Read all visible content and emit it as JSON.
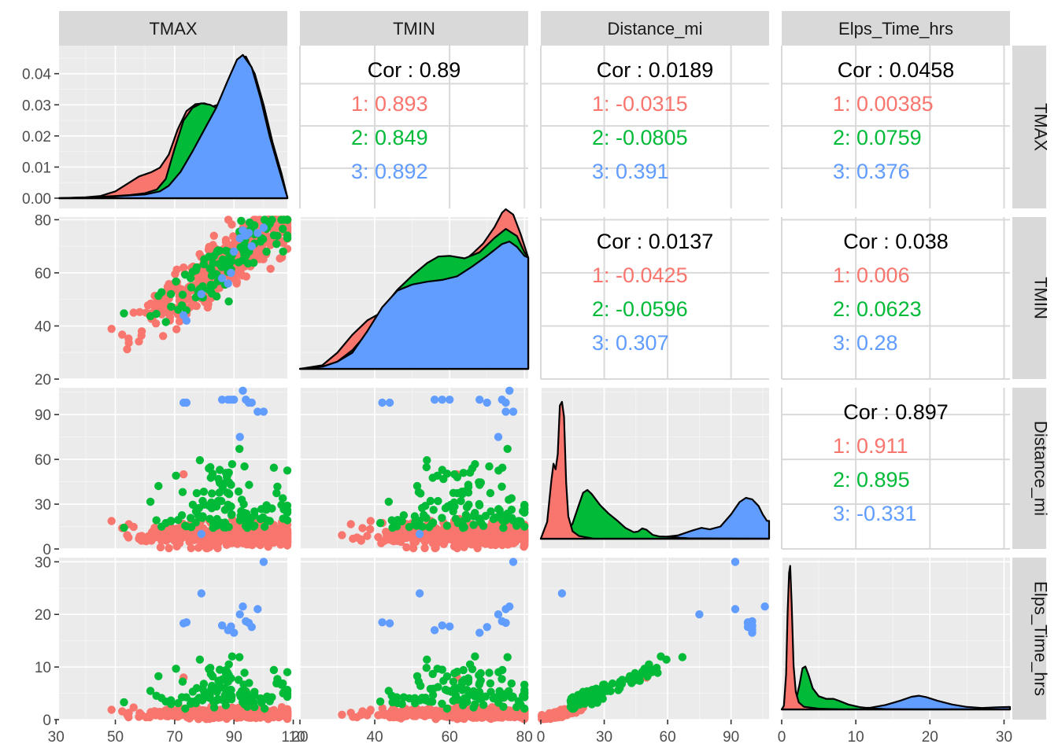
{
  "chart_data": {
    "type": "scatter-matrix",
    "variables": [
      "TMAX",
      "TMIN",
      "Distance_mi",
      "Elps_Time_hrs"
    ],
    "groups": [
      {
        "name": "1",
        "color": "#F8766D"
      },
      {
        "name": "2",
        "color": "#00BA38"
      },
      {
        "name": "3",
        "color": "#619CFF"
      }
    ],
    "axes": {
      "TMAX": {
        "range": [
          31,
          108
        ],
        "ticks": [
          30,
          50,
          70,
          90,
          110
        ]
      },
      "TMIN": {
        "range": [
          20,
          81
        ],
        "ticks": [
          20,
          40,
          60,
          80
        ]
      },
      "Distance_mi": {
        "range": [
          0,
          108
        ],
        "ticks": [
          0,
          30,
          60,
          90
        ]
      },
      "Elps_Time_hrs": {
        "range": [
          0,
          30.8
        ],
        "ticks": [
          0,
          10,
          20,
          30
        ]
      }
    },
    "density_yaxis": {
      "range": [
        0,
        0.0475
      ],
      "ticks": [
        "0.00",
        "0.01",
        "0.02",
        "0.03",
        "0.04"
      ]
    },
    "grid": true,
    "correlations": [
      {
        "row": "TMAX",
        "col": "TMIN",
        "overall": "Cor : 0.89",
        "groups": [
          "1: 0.893",
          "2: 0.849",
          "3: 0.892"
        ]
      },
      {
        "row": "TMAX",
        "col": "Distance_mi",
        "overall": "Cor : 0.0189",
        "groups": [
          "1: -0.0315",
          "2: -0.0805",
          "3: 0.391"
        ]
      },
      {
        "row": "TMAX",
        "col": "Elps_Time_hrs",
        "overall": "Cor : 0.0458",
        "groups": [
          "1: 0.00385",
          "2: 0.0759",
          "3: 0.376"
        ]
      },
      {
        "row": "TMIN",
        "col": "Distance_mi",
        "overall": "Cor : 0.0137",
        "groups": [
          "1: -0.0425",
          "2: -0.0596",
          "3: 0.307"
        ]
      },
      {
        "row": "TMIN",
        "col": "Elps_Time_hrs",
        "overall": "Cor : 0.038",
        "groups": [
          "1: 0.006",
          "2: 0.0623",
          "3: 0.28"
        ]
      },
      {
        "row": "Distance_mi",
        "col": "Elps_Time_hrs",
        "overall": "Cor : 0.897",
        "groups": [
          "1: 0.911",
          "2: 0.895",
          "3: -0.331"
        ]
      }
    ],
    "densities": {
      "TMAX": {
        "scale": [
          0,
          0.0475
        ],
        "groups": {
          "3": [
            [
              31,
              0
            ],
            [
              40,
              0.0002
            ],
            [
              50,
              0.0006
            ],
            [
              55,
              0.0009
            ],
            [
              60,
              0.0012
            ],
            [
              65,
              0.0022
            ],
            [
              68,
              0.004
            ],
            [
              72,
              0.0085
            ],
            [
              76,
              0.015
            ],
            [
              80,
              0.022
            ],
            [
              84,
              0.029
            ],
            [
              88,
              0.038
            ],
            [
              91,
              0.0445
            ],
            [
              93,
              0.046
            ],
            [
              96,
              0.042
            ],
            [
              99,
              0.032
            ],
            [
              102,
              0.02
            ],
            [
              105,
              0.01
            ],
            [
              108,
              0.0003
            ]
          ],
          "2": [
            [
              31,
              0
            ],
            [
              40,
              0.0002
            ],
            [
              50,
              0.0007
            ],
            [
              55,
              0.001
            ],
            [
              60,
              0.0016
            ],
            [
              64,
              0.0028
            ],
            [
              67,
              0.0062
            ],
            [
              70,
              0.016
            ],
            [
              73,
              0.025
            ],
            [
              76,
              0.029
            ],
            [
              79,
              0.0305
            ],
            [
              82,
              0.03
            ],
            [
              85,
              0.0285
            ],
            [
              88,
              0.0345
            ],
            [
              91,
              0.043
            ],
            [
              93,
              0.046
            ],
            [
              96,
              0.042
            ],
            [
              99,
              0.032
            ],
            [
              102,
              0.02
            ],
            [
              105,
              0.01
            ],
            [
              108,
              0.0003
            ]
          ],
          "1": [
            [
              31,
              0
            ],
            [
              40,
              0.0003
            ],
            [
              45,
              0.0007
            ],
            [
              50,
              0.0022
            ],
            [
              55,
              0.0052
            ],
            [
              58,
              0.007
            ],
            [
              62,
              0.0083
            ],
            [
              65,
              0.0098
            ],
            [
              68,
              0.014
            ],
            [
              71,
              0.022
            ],
            [
              74,
              0.028
            ],
            [
              77,
              0.0302
            ],
            [
              80,
              0.0305
            ],
            [
              83,
              0.0295
            ],
            [
              86,
              0.0305
            ],
            [
              89,
              0.038
            ],
            [
              92,
              0.045
            ],
            [
              94,
              0.0455
            ],
            [
              97,
              0.04
            ],
            [
              100,
              0.03
            ],
            [
              103,
              0.018
            ],
            [
              106,
              0.008
            ],
            [
              108,
              0.0003
            ]
          ]
        }
      },
      "TMIN": {
        "scale": [
          0,
          0.041
        ],
        "groups": {
          "3": [
            [
              20,
              0
            ],
            [
              26,
              0.0006
            ],
            [
              30,
              0.002
            ],
            [
              34,
              0.0045
            ],
            [
              38,
              0.0105
            ],
            [
              42,
              0.0172
            ],
            [
              46,
              0.0218
            ],
            [
              50,
              0.0235
            ],
            [
              54,
              0.0243
            ],
            [
              58,
              0.0248
            ],
            [
              62,
              0.0258
            ],
            [
              66,
              0.0285
            ],
            [
              70,
              0.0315
            ],
            [
              74,
              0.0348
            ],
            [
              76,
              0.0355
            ],
            [
              78,
              0.034
            ],
            [
              80,
              0.0315
            ],
            [
              81,
              0.031
            ]
          ],
          "2": [
            [
              20,
              0
            ],
            [
              26,
              0.0006
            ],
            [
              30,
              0.002
            ],
            [
              34,
              0.0052
            ],
            [
              38,
              0.01
            ],
            [
              42,
              0.0168
            ],
            [
              46,
              0.022
            ],
            [
              50,
              0.026
            ],
            [
              54,
              0.0295
            ],
            [
              57,
              0.0313
            ],
            [
              60,
              0.0315
            ],
            [
              64,
              0.0308
            ],
            [
              68,
              0.0325
            ],
            [
              72,
              0.0365
            ],
            [
              75,
              0.039
            ],
            [
              78,
              0.037
            ],
            [
              80,
              0.0325
            ],
            [
              81,
              0.031
            ]
          ],
          "1": [
            [
              20,
              0
            ],
            [
              26,
              0.001
            ],
            [
              30,
              0.0045
            ],
            [
              34,
              0.0095
            ],
            [
              38,
              0.0135
            ],
            [
              42,
              0.0158
            ],
            [
              46,
              0.017
            ],
            [
              50,
              0.019
            ],
            [
              54,
              0.022
            ],
            [
              58,
              0.0255
            ],
            [
              62,
              0.0285
            ],
            [
              66,
              0.032
            ],
            [
              69,
              0.035
            ],
            [
              72,
              0.0395
            ],
            [
              74,
              0.0435
            ],
            [
              75,
              0.0445
            ],
            [
              77,
              0.043
            ],
            [
              79,
              0.0375
            ],
            [
              81,
              0.031
            ]
          ]
        }
      },
      "Distance_mi": {
        "scale": [
          0,
          0.078
        ],
        "groups": {
          "1": [
            [
              0,
              0
            ],
            [
              3,
              0.009
            ],
            [
              5,
              0.031
            ],
            [
              6,
              0.04
            ],
            [
              7,
              0.037
            ],
            [
              8,
              0.045
            ],
            [
              9,
              0.071
            ],
            [
              10,
              0.073
            ],
            [
              11,
              0.065
            ],
            [
              12,
              0.03
            ],
            [
              13,
              0.012
            ],
            [
              15,
              0.004
            ],
            [
              18,
              0.0015
            ],
            [
              25,
              0
            ],
            [
              60,
              0
            ],
            [
              108,
              0
            ]
          ],
          "2": [
            [
              0,
              0
            ],
            [
              5,
              0.0006
            ],
            [
              12,
              0.003
            ],
            [
              15,
              0.008
            ],
            [
              18,
              0.018
            ],
            [
              20,
              0.0245
            ],
            [
              22,
              0.026
            ],
            [
              24,
              0.024
            ],
            [
              28,
              0.018
            ],
            [
              32,
              0.0135
            ],
            [
              36,
              0.0098
            ],
            [
              40,
              0.0058
            ],
            [
              44,
              0.0035
            ],
            [
              46,
              0.0038
            ],
            [
              48,
              0.0055
            ],
            [
              50,
              0.0048
            ],
            [
              53,
              0.002
            ],
            [
              56,
              0.0012
            ],
            [
              62,
              0.001
            ],
            [
              66,
              0.0005
            ],
            [
              70,
              0.0002
            ],
            [
              108,
              0
            ]
          ],
          "3": [
            [
              0,
              0
            ],
            [
              3,
              0.0008
            ],
            [
              6,
              0.0022
            ],
            [
              9,
              0.0035
            ],
            [
              11,
              0.0033
            ],
            [
              14,
              0.0018
            ],
            [
              18,
              0.0008
            ],
            [
              25,
              0.0002
            ],
            [
              40,
              0.0002
            ],
            [
              55,
              0.0005
            ],
            [
              65,
              0.0018
            ],
            [
              72,
              0.0045
            ],
            [
              76,
              0.0058
            ],
            [
              80,
              0.005
            ],
            [
              85,
              0.0065
            ],
            [
              90,
              0.013
            ],
            [
              94,
              0.0195
            ],
            [
              97,
              0.0218
            ],
            [
              100,
              0.021
            ],
            [
              103,
              0.0175
            ],
            [
              105,
              0.013
            ],
            [
              107,
              0.0095
            ],
            [
              108,
              0.0095
            ]
          ]
        }
      },
      "Elps_Time_hrs": {
        "scale": [
          0,
          0.84
        ],
        "groups": {
          "1": [
            [
              0,
              0
            ],
            [
              0.3,
              0.02
            ],
            [
              0.6,
              0.2
            ],
            [
              0.8,
              0.55
            ],
            [
              1.0,
              0.78
            ],
            [
              1.15,
              0.82
            ],
            [
              1.35,
              0.6
            ],
            [
              1.6,
              0.25
            ],
            [
              1.9,
              0.1
            ],
            [
              2.3,
              0.04
            ],
            [
              3,
              0.015
            ],
            [
              5,
              0.004
            ],
            [
              8,
              0
            ],
            [
              30.8,
              0
            ]
          ],
          "2": [
            [
              0,
              0
            ],
            [
              1,
              0.004
            ],
            [
              1.8,
              0.03
            ],
            [
              2.4,
              0.14
            ],
            [
              2.8,
              0.235
            ],
            [
              3.2,
              0.245
            ],
            [
              3.6,
              0.2
            ],
            [
              4.2,
              0.12
            ],
            [
              5,
              0.075
            ],
            [
              6,
              0.06
            ],
            [
              7,
              0.06
            ],
            [
              7.8,
              0.048
            ],
            [
              9,
              0.028
            ],
            [
              10.5,
              0.013
            ],
            [
              12,
              0.006
            ],
            [
              14,
              0.002
            ],
            [
              18,
              0
            ],
            [
              30.8,
              0
            ]
          ],
          "3": [
            [
              0,
              0
            ],
            [
              2,
              0.003
            ],
            [
              5,
              0.006
            ],
            [
              9,
              0.005
            ],
            [
              12,
              0.01
            ],
            [
              14,
              0.025
            ],
            [
              16,
              0.05
            ],
            [
              17.5,
              0.072
            ],
            [
              18.5,
              0.078
            ],
            [
              19.5,
              0.07
            ],
            [
              21,
              0.05
            ],
            [
              23,
              0.028
            ],
            [
              25,
              0.014
            ],
            [
              27,
              0.008
            ],
            [
              29,
              0.012
            ],
            [
              30.8,
              0.014
            ]
          ]
        }
      }
    }
  }
}
